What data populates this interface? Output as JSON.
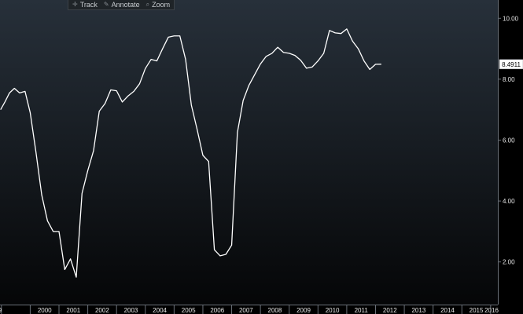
{
  "toolbar": {
    "track": {
      "label": "Track",
      "icon": "crosshair-icon"
    },
    "annotate": {
      "label": "Annotate",
      "icon": "pencil-icon"
    },
    "zoom": {
      "label": "Zoom",
      "icon": "magnifier-icon"
    }
  },
  "colors": {
    "background_top": "#27303a",
    "background_bottom": "#050607",
    "line": "#ffffff",
    "grid": "#6a7078",
    "axis_text": "#e6e6e6"
  },
  "chart_data": {
    "type": "line",
    "title": "",
    "xlabel": "",
    "ylabel": "",
    "ylim": [
      0.6,
      10.6
    ],
    "yticks": [
      "2.00",
      "4.00",
      "6.00",
      "8.00",
      "10.00"
    ],
    "xlim": [
      1998.95,
      2016.25
    ],
    "xticks": [
      "9",
      "2000",
      "2001",
      "2002",
      "2003",
      "2004",
      "2005",
      "2006",
      "2007",
      "2008",
      "2009",
      "2010",
      "2011",
      "2012",
      "2013",
      "2014",
      "2015",
      "2016"
    ],
    "grid": false,
    "last_value_label": "8.4911",
    "series": [
      {
        "points": [
          [
            1998.97,
            7.0
          ],
          [
            1999.12,
            7.25
          ],
          [
            1999.28,
            7.55
          ],
          [
            1999.45,
            7.7
          ],
          [
            1999.63,
            7.55
          ],
          [
            1999.82,
            7.6
          ],
          [
            2000.0,
            6.9
          ],
          [
            2000.2,
            5.6
          ],
          [
            2000.4,
            4.2
          ],
          [
            2000.6,
            3.35
          ],
          [
            2000.8,
            3.0
          ],
          [
            2001.0,
            3.0
          ],
          [
            2001.2,
            1.75
          ],
          [
            2001.4,
            2.1
          ],
          [
            2001.6,
            1.5
          ],
          [
            2001.8,
            4.25
          ],
          [
            2002.0,
            5.0
          ],
          [
            2002.2,
            5.65
          ],
          [
            2002.4,
            6.95
          ],
          [
            2002.6,
            7.2
          ],
          [
            2002.8,
            7.65
          ],
          [
            2003.0,
            7.62
          ],
          [
            2003.2,
            7.25
          ],
          [
            2003.4,
            7.45
          ],
          [
            2003.6,
            7.6
          ],
          [
            2003.8,
            7.85
          ],
          [
            2004.0,
            8.35
          ],
          [
            2004.2,
            8.65
          ],
          [
            2004.4,
            8.6
          ],
          [
            2004.6,
            9.0
          ],
          [
            2004.8,
            9.38
          ],
          [
            2005.0,
            9.42
          ],
          [
            2005.2,
            9.42
          ],
          [
            2005.4,
            8.65
          ],
          [
            2005.6,
            7.15
          ],
          [
            2005.8,
            6.35
          ],
          [
            2006.0,
            5.5
          ],
          [
            2006.2,
            5.3
          ],
          [
            2006.4,
            2.4
          ],
          [
            2006.6,
            2.2
          ],
          [
            2006.8,
            2.25
          ],
          [
            2007.0,
            2.55
          ],
          [
            2007.2,
            6.25
          ],
          [
            2007.4,
            7.3
          ],
          [
            2007.6,
            7.8
          ],
          [
            2007.8,
            8.15
          ],
          [
            2008.0,
            8.5
          ],
          [
            2008.2,
            8.75
          ],
          [
            2008.4,
            8.85
          ],
          [
            2008.6,
            9.05
          ],
          [
            2008.8,
            8.88
          ],
          [
            2009.0,
            8.85
          ],
          [
            2009.2,
            8.78
          ],
          [
            2009.4,
            8.62
          ],
          [
            2009.6,
            8.36
          ],
          [
            2009.8,
            8.4
          ],
          [
            2010.0,
            8.6
          ],
          [
            2010.2,
            8.85
          ],
          [
            2010.4,
            9.6
          ],
          [
            2010.6,
            9.52
          ],
          [
            2010.8,
            9.5
          ],
          [
            2011.0,
            9.65
          ],
          [
            2011.2,
            9.25
          ],
          [
            2011.4,
            9.0
          ],
          [
            2011.6,
            8.6
          ],
          [
            2011.8,
            8.32
          ],
          [
            2012.0,
            8.49
          ],
          [
            2012.2,
            8.4911
          ]
        ]
      }
    ]
  }
}
